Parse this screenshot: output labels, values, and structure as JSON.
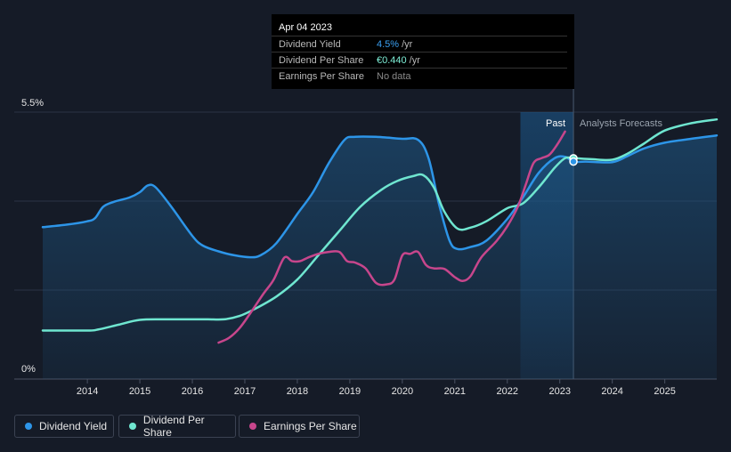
{
  "tooltip": {
    "date": "Apr 04 2023",
    "rows": [
      {
        "label": "Dividend Yield",
        "value": "4.5%",
        "unit": "/yr",
        "color": "#3a9ff0"
      },
      {
        "label": "Dividend Per Share",
        "value": "€0.440",
        "unit": "/yr",
        "color": "#7ff0d8"
      },
      {
        "label": "Earnings Per Share",
        "value": "No data",
        "unit": "",
        "color": "#8a8a8a"
      }
    ]
  },
  "legend": [
    {
      "label": "Dividend Yield",
      "color": "#2d95e8"
    },
    {
      "label": "Dividend Per Share",
      "color": "#6fe6d0"
    },
    {
      "label": "Earnings Per Share",
      "color": "#c7468c"
    }
  ],
  "chart_data": {
    "type": "line",
    "title": "",
    "xlabel": "",
    "ylabel": "",
    "xlim": [
      2013.15,
      2025.99
    ],
    "ylim": [
      0,
      5.5
    ],
    "y_tick_labels": [
      "5.5%",
      "0%"
    ],
    "x_ticks": [
      2014,
      2015,
      2016,
      2017,
      2018,
      2019,
      2020,
      2021,
      2022,
      2023,
      2024,
      2025
    ],
    "past_label": "Past",
    "forecast_label": "Analysts Forecasts",
    "past_region": [
      2022.25,
      2023.26
    ],
    "series": [
      {
        "name": "Dividend Yield",
        "color": "#2d95e8",
        "x": [
          2013.15,
          2013.6,
          2014.0,
          2014.15,
          2014.3,
          2014.5,
          2014.8,
          2015.0,
          2015.15,
          2015.3,
          2015.6,
          2016.0,
          2016.2,
          2016.5,
          2016.8,
          2017.1,
          2017.3,
          2017.6,
          2018.0,
          2018.3,
          2018.6,
          2018.9,
          2019.1,
          2019.5,
          2020.0,
          2020.3,
          2020.5,
          2020.7,
          2020.9,
          2021.05,
          2021.3,
          2021.6,
          2022.0,
          2022.3,
          2022.6,
          2022.9,
          2023.1,
          2023.26,
          2023.5,
          2024.0,
          2024.3,
          2024.6,
          2025.0,
          2025.5,
          2025.99
        ],
        "y": [
          3.13,
          3.18,
          3.25,
          3.32,
          3.55,
          3.65,
          3.74,
          3.85,
          3.99,
          3.95,
          3.55,
          2.95,
          2.75,
          2.63,
          2.55,
          2.51,
          2.55,
          2.8,
          3.4,
          3.85,
          4.45,
          4.93,
          4.99,
          4.99,
          4.95,
          4.93,
          4.55,
          3.6,
          2.85,
          2.68,
          2.72,
          2.85,
          3.3,
          3.75,
          4.25,
          4.55,
          4.58,
          4.48,
          4.48,
          4.47,
          4.6,
          4.75,
          4.87,
          4.95,
          5.02
        ]
      },
      {
        "name": "Dividend Per Share",
        "color": "#6fe6d0",
        "x": [
          2013.15,
          2014.0,
          2014.2,
          2014.6,
          2015.0,
          2015.5,
          2016.0,
          2016.3,
          2016.6,
          2016.9,
          2017.2,
          2017.6,
          2018.0,
          2018.4,
          2018.8,
          2019.2,
          2019.6,
          2019.9,
          2020.2,
          2020.4,
          2020.6,
          2020.8,
          2021.05,
          2021.3,
          2021.6,
          2022.0,
          2022.3,
          2022.6,
          2022.9,
          2023.1,
          2023.26,
          2023.6,
          2024.0,
          2024.3,
          2024.6,
          2025.0,
          2025.5,
          2025.99
        ],
        "y": [
          1.0,
          1.0,
          1.02,
          1.12,
          1.22,
          1.23,
          1.23,
          1.23,
          1.23,
          1.3,
          1.45,
          1.7,
          2.05,
          2.55,
          3.05,
          3.55,
          3.9,
          4.08,
          4.18,
          4.2,
          3.95,
          3.45,
          3.1,
          3.12,
          3.25,
          3.52,
          3.62,
          3.95,
          4.35,
          4.55,
          4.55,
          4.53,
          4.52,
          4.65,
          4.85,
          5.12,
          5.27,
          5.35
        ]
      },
      {
        "name": "Earnings Per Share",
        "color": "#c7468c",
        "x": [
          2016.5,
          2016.7,
          2016.9,
          2017.1,
          2017.35,
          2017.55,
          2017.75,
          2017.9,
          2018.05,
          2018.2,
          2018.4,
          2018.6,
          2018.8,
          2018.95,
          2019.1,
          2019.3,
          2019.5,
          2019.7,
          2019.85,
          2020.0,
          2020.15,
          2020.3,
          2020.45,
          2020.6,
          2020.8,
          2021.0,
          2021.15,
          2021.3,
          2021.5,
          2021.8,
          2022.0,
          2022.2,
          2022.35,
          2022.5,
          2022.65,
          2022.8,
          2022.95,
          2023.1
        ],
        "y": [
          0.75,
          0.85,
          1.05,
          1.35,
          1.75,
          2.05,
          2.5,
          2.43,
          2.43,
          2.5,
          2.58,
          2.62,
          2.62,
          2.43,
          2.4,
          2.28,
          1.98,
          1.95,
          2.05,
          2.55,
          2.58,
          2.62,
          2.35,
          2.28,
          2.27,
          2.1,
          2.02,
          2.12,
          2.5,
          2.85,
          3.15,
          3.55,
          4.0,
          4.45,
          4.55,
          4.62,
          4.83,
          5.1
        ]
      }
    ],
    "markers": [
      {
        "series": "Dividend Per Share",
        "x": 2023.26,
        "y": 4.55
      },
      {
        "series": "Dividend Yield",
        "x": 2023.26,
        "y": 4.48
      }
    ]
  }
}
